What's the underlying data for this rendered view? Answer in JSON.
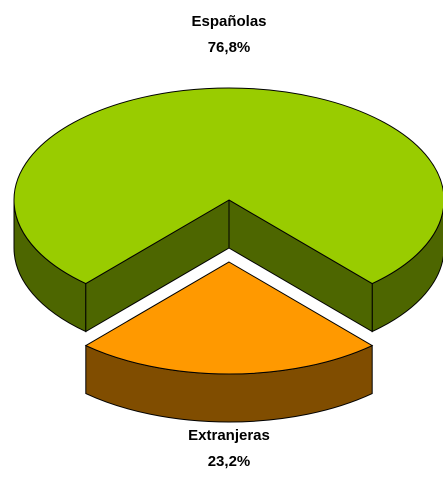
{
  "chart_data": {
    "type": "pie",
    "categories": [
      "Españolas",
      "Extranjeras"
    ],
    "values": [
      76.8,
      23.2
    ],
    "value_labels": [
      "76,8%",
      "23,2%"
    ],
    "colors": [
      "#99cc00",
      "#ff9900"
    ]
  }
}
